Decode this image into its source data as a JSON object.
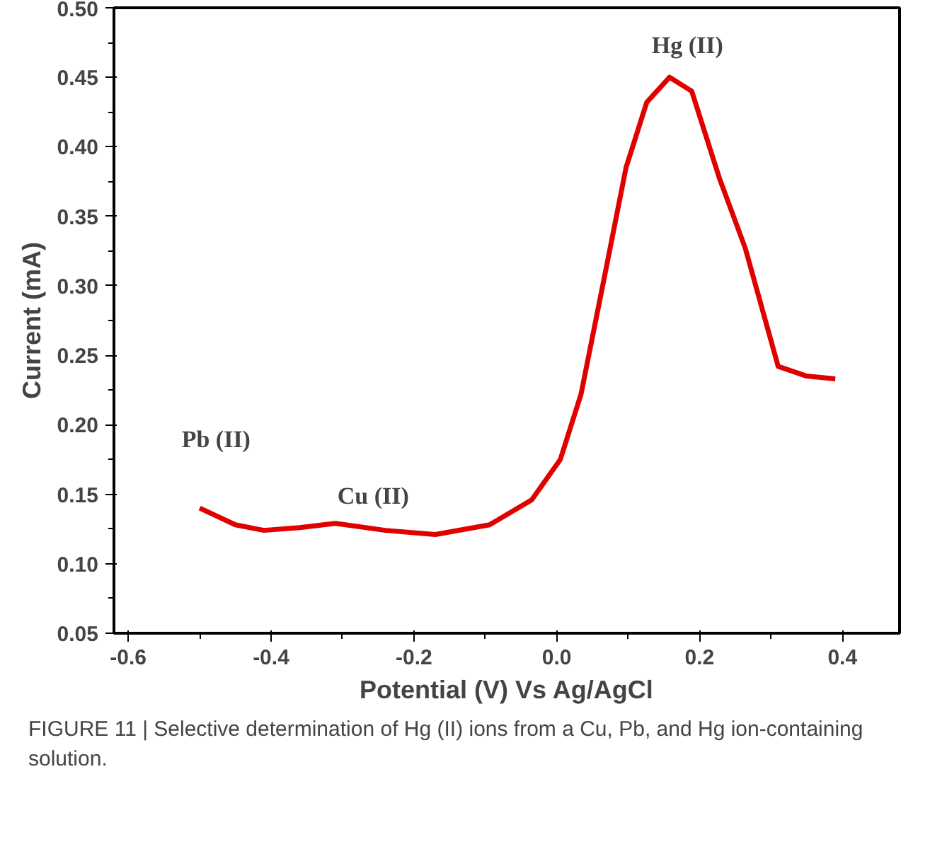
{
  "chart_data": {
    "type": "line",
    "xlabel": "Potential (V) Vs Ag/AgCl",
    "ylabel": "Current (mA)",
    "x": [
      -0.5,
      -0.45,
      -0.41,
      -0.36,
      -0.31,
      -0.24,
      -0.17,
      -0.094,
      -0.035,
      0.005,
      0.034,
      0.067,
      0.097,
      0.126,
      0.158,
      0.189,
      0.228,
      0.264,
      0.31,
      0.35,
      0.39
    ],
    "series": [
      {
        "color": "#e00000",
        "values": [
          0.14,
          0.128,
          0.124,
          0.126,
          0.129,
          0.124,
          0.121,
          0.128,
          0.146,
          0.175,
          0.222,
          0.307,
          0.385,
          0.432,
          0.45,
          0.44,
          0.377,
          0.327,
          0.242,
          0.235,
          0.233
        ]
      }
    ],
    "xlim": [
      -0.62,
      0.48
    ],
    "ylim": [
      0.05,
      0.5
    ],
    "xticks": [
      -0.6,
      -0.4,
      -0.2,
      {
        "value": 0,
        "label": "0.0"
      },
      0.2,
      0.4
    ],
    "yticks": [
      0.05,
      {
        "value": 0.1,
        "label": "0.10"
      },
      0.15,
      {
        "value": 0.2,
        "label": "0.20"
      },
      0.25,
      {
        "value": 0.3,
        "label": "0.30"
      },
      0.35,
      {
        "value": 0.4,
        "label": "0.40"
      },
      0.45,
      {
        "value": 0.5,
        "label": "0.50"
      }
    ],
    "grid": false,
    "marker": "none",
    "line_style": "solid",
    "annotations": [
      "Pb (II)",
      "Cu (II)",
      "Hg (II)",
      "FIGURE 11 | Selective determination of Hg (II) ions from a Cu, Pb, and Hg ion-containing solution."
    ]
  }
}
